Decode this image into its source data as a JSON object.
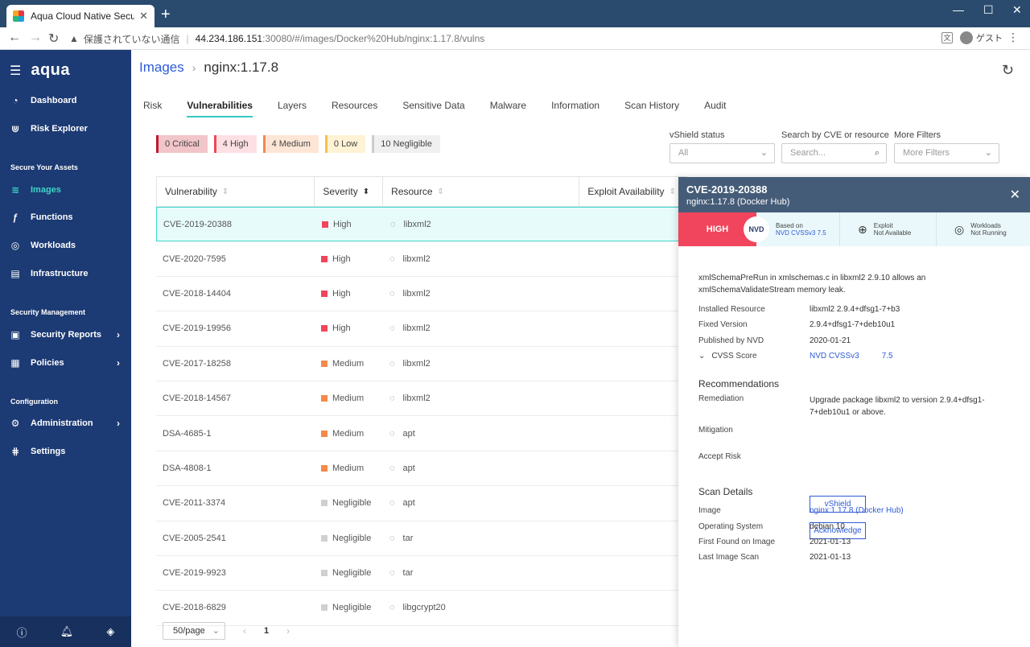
{
  "browser": {
    "tab_title": "Aqua Cloud Native Security Platf",
    "url_warning": "保護されていない通信",
    "url_host": "44.234.186.151",
    "url_path": ":30080/#/images/Docker%20Hub/nginx:1.17.8/vulns",
    "profile": "ゲスト"
  },
  "sidebar": {
    "logo": "aqua",
    "items": [
      {
        "label": "Dashboard",
        "icon": "gauge-icon"
      },
      {
        "label": "Risk Explorer",
        "icon": "risk-icon"
      },
      {
        "label": "Images",
        "icon": "stack-icon"
      },
      {
        "label": "Functions",
        "icon": "function-icon"
      },
      {
        "label": "Workloads",
        "icon": "workloads-icon"
      },
      {
        "label": "Infrastructure",
        "icon": "server-icon"
      },
      {
        "label": "Security Reports",
        "icon": "report-icon"
      },
      {
        "label": "Policies",
        "icon": "policy-icon"
      },
      {
        "label": "Administration",
        "icon": "gear-icon"
      },
      {
        "label": "Settings",
        "icon": "settings-icon"
      }
    ],
    "sections": [
      "Secure Your Assets",
      "Security Management",
      "Configuration"
    ]
  },
  "breadcrumb": {
    "link": "Images",
    "current": "nginx:1.17.8"
  },
  "tabs": [
    "Risk",
    "Vulnerabilities",
    "Layers",
    "Resources",
    "Sensitive Data",
    "Malware",
    "Information",
    "Scan History",
    "Audit"
  ],
  "chips": [
    "0 Critical",
    "4 High",
    "4 Medium",
    "0 Low",
    "10 Negligible"
  ],
  "filters": {
    "vshield_label": "vShield status",
    "vshield_value": "All",
    "search_label": "Search by CVE or resource",
    "search_placeholder": "Search...",
    "more_label": "More Filters",
    "more_value": "More Filters"
  },
  "table": {
    "headers": [
      "Vulnerability",
      "Severity",
      "Resource",
      "Exploit Availability"
    ],
    "rows": [
      {
        "vuln": "CVE-2019-20388",
        "sev": "High",
        "res": "libxml2"
      },
      {
        "vuln": "CVE-2020-7595",
        "sev": "High",
        "res": "libxml2"
      },
      {
        "vuln": "CVE-2018-14404",
        "sev": "High",
        "res": "libxml2"
      },
      {
        "vuln": "CVE-2019-19956",
        "sev": "High",
        "res": "libxml2"
      },
      {
        "vuln": "CVE-2017-18258",
        "sev": "Medium",
        "res": "libxml2"
      },
      {
        "vuln": "CVE-2018-14567",
        "sev": "Medium",
        "res": "libxml2"
      },
      {
        "vuln": "DSA-4685-1",
        "sev": "Medium",
        "res": "apt"
      },
      {
        "vuln": "DSA-4808-1",
        "sev": "Medium",
        "res": "apt"
      },
      {
        "vuln": "CVE-2011-3374",
        "sev": "Negligible",
        "res": "apt"
      },
      {
        "vuln": "CVE-2005-2541",
        "sev": "Negligible",
        "res": "tar"
      },
      {
        "vuln": "CVE-2019-9923",
        "sev": "Negligible",
        "res": "tar"
      },
      {
        "vuln": "CVE-2018-6829",
        "sev": "Negligible",
        "res": "libgcrypt20"
      }
    ]
  },
  "pager": {
    "per_page": "50/page",
    "page": "1"
  },
  "colors": {
    "high": "#f0455c",
    "medium": "#f5894a",
    "negligible": "#d0d0d0",
    "accent": "#3dd6c7",
    "link": "#2e5bd8"
  },
  "panel": {
    "cve": "CVE-2019-20388",
    "image": "nginx:1.17.8 (Docker Hub)",
    "severity": "HIGH",
    "nvd": "NVD",
    "based_on_label": "Based on",
    "based_on_value": "NVD CVSSv3 7.5",
    "exploit_label": "Exploit",
    "exploit_value": "Not Available",
    "workloads_label": "Workloads",
    "workloads_value": "Not Running",
    "description": "xmlSchemaPreRun in xmlschemas.c in libxml2 2.9.10 allows an xmlSchemaValidateStream memory leak.",
    "installed_resource_label": "Installed Resource",
    "installed_resource": "libxml2 2.9.4+dfsg1-7+b3",
    "fixed_version_label": "Fixed Version",
    "fixed_version": "2.9.4+dfsg1-7+deb10u1",
    "published_label": "Published by NVD",
    "published": "2020-01-21",
    "cvss_label": "CVSS Score",
    "cvss_source": "NVD CVSSv3",
    "cvss_value": "7.5",
    "recommendations_title": "Recommendations",
    "remediation_label": "Remediation",
    "remediation": "Upgrade package libxml2 to version 2.9.4+dfsg1-7+deb10u1 or above.",
    "mitigation_label": "Mitigation",
    "mitigation_button": "vShield",
    "accept_risk_label": "Accept Risk",
    "accept_risk_button": "Acknowledge",
    "scan_details_title": "Scan Details",
    "image_label": "Image",
    "image_value": "nginx:1.17.8 (Docker Hub)",
    "os_label": "Operating System",
    "os_value": "debian 10",
    "first_found_label": "First Found on Image",
    "first_found": "2021-01-13",
    "last_scan_label": "Last Image Scan",
    "last_scan": "2021-01-13"
  }
}
